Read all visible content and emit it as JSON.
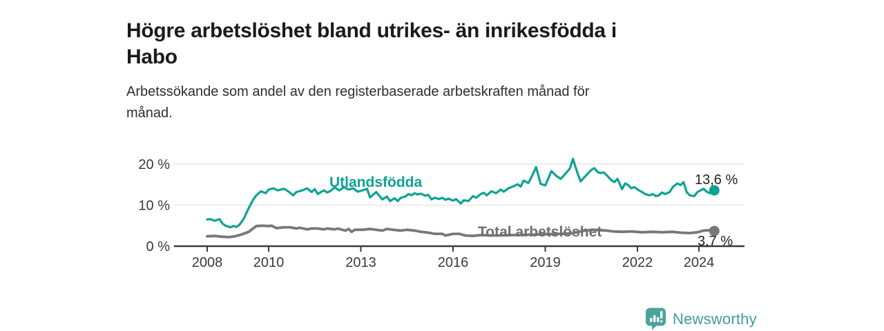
{
  "header": {
    "title": "Högre arbetslöshet bland utrikes- än inrikesfödda i Habo",
    "title_lines": [
      "Högre arbetslöshet bland utrikes- än inrikesfödda i",
      "Habo"
    ],
    "subtitle": "Arbetssökande som andel av den registerbaserade arbetskraften månad för månad.",
    "subtitle_lines": [
      "Arbetssökande som andel av den registerbaserade arbetskraften månad för",
      "månad."
    ]
  },
  "footer": {
    "logo_text": "Newsworthy",
    "logo_color": "#3f9e97",
    "logo_icon": "bar-chart-speech-bubble-icon"
  },
  "chart_data": {
    "type": "line",
    "title": "Högre arbetslöshet bland utrikes- än inrikesfödda i Habo",
    "subtitle": "Arbetssökande som andel av den registerbaserade arbetskraften månad för månad.",
    "xlabel": "",
    "ylabel": "",
    "unit": "%",
    "x_range": [
      2006.9,
      2025.5
    ],
    "ylim": [
      0,
      22.5
    ],
    "grid": "horizontal",
    "legend_position": "inline-labels",
    "x_axis": {
      "ticks": [
        2008,
        2010,
        2013,
        2016,
        2019,
        2022,
        2024
      ]
    },
    "y_axis": {
      "ticks": [
        {
          "value": 0,
          "label": "0 %"
        },
        {
          "value": 10,
          "label": "10 %"
        },
        {
          "value": 20,
          "label": "20 %"
        }
      ]
    },
    "style": {
      "grid_color": "#e1e1e1",
      "axis_color": "#3a3a3a",
      "axis_text_color": "#3a3a3a"
    },
    "series": [
      {
        "id": "utlandsfodda",
        "name": "Utlandsfödda",
        "color": "#0ea294",
        "width": 3.2,
        "end_label": "13,6 %",
        "end_value": 13.6,
        "points": [
          [
            2008,
            6.5
          ],
          [
            2008.1,
            6.6
          ],
          [
            2008.25,
            6.2
          ],
          [
            2008.4,
            6.6
          ],
          [
            2008.5,
            5.5
          ],
          [
            2008.6,
            5
          ],
          [
            2008.75,
            4.6
          ],
          [
            2008.85,
            4.9
          ],
          [
            2008.95,
            4.7
          ],
          [
            2009.05,
            5.2
          ],
          [
            2009.2,
            6.8
          ],
          [
            2009.35,
            9.3
          ],
          [
            2009.5,
            11.4
          ],
          [
            2009.6,
            12.4
          ],
          [
            2009.75,
            13.4
          ],
          [
            2009.9,
            12.9
          ],
          [
            2010,
            13.8
          ],
          [
            2010.15,
            14.1
          ],
          [
            2010.3,
            13.6
          ],
          [
            2010.5,
            14
          ],
          [
            2010.65,
            13.3
          ],
          [
            2010.8,
            12.4
          ],
          [
            2010.9,
            13.2
          ],
          [
            2011.1,
            13.6
          ],
          [
            2011.25,
            14.1
          ],
          [
            2011.4,
            13.2
          ],
          [
            2011.5,
            13.9
          ],
          [
            2011.6,
            12.7
          ],
          [
            2011.7,
            13.2
          ],
          [
            2011.8,
            13.6
          ],
          [
            2011.9,
            13.1
          ],
          [
            2012,
            13.4
          ],
          [
            2012.15,
            14.3
          ],
          [
            2012.3,
            13.6
          ],
          [
            2012.45,
            14.4
          ],
          [
            2012.6,
            13.8
          ],
          [
            2012.75,
            14.1
          ],
          [
            2012.9,
            13.3
          ],
          [
            2013.05,
            13.6
          ],
          [
            2013.2,
            14
          ],
          [
            2013.3,
            11.9
          ],
          [
            2013.5,
            13.2
          ],
          [
            2013.7,
            11.4
          ],
          [
            2013.85,
            12.1
          ],
          [
            2013.95,
            11
          ],
          [
            2014.1,
            11.7
          ],
          [
            2014.2,
            11
          ],
          [
            2014.3,
            11.8
          ],
          [
            2014.45,
            12.1
          ],
          [
            2014.55,
            12.7
          ],
          [
            2014.65,
            12.4
          ],
          [
            2014.75,
            12.9
          ],
          [
            2014.85,
            12.6
          ],
          [
            2014.95,
            12.8
          ],
          [
            2015.1,
            12.3
          ],
          [
            2015.2,
            12.5
          ],
          [
            2015.3,
            11.4
          ],
          [
            2015.4,
            11.8
          ],
          [
            2015.55,
            11.5
          ],
          [
            2015.65,
            11.8
          ],
          [
            2015.75,
            11.3
          ],
          [
            2015.85,
            11.6
          ],
          [
            2016,
            11.1
          ],
          [
            2016.1,
            11.5
          ],
          [
            2016.25,
            10.4
          ],
          [
            2016.35,
            11.2
          ],
          [
            2016.5,
            11
          ],
          [
            2016.65,
            12.2
          ],
          [
            2016.75,
            11.8
          ],
          [
            2016.9,
            12.7
          ],
          [
            2017,
            13
          ],
          [
            2017.1,
            12.4
          ],
          [
            2017.25,
            13.4
          ],
          [
            2017.4,
            12.9
          ],
          [
            2017.55,
            13.8
          ],
          [
            2017.65,
            13.3
          ],
          [
            2017.8,
            14.1
          ],
          [
            2018,
            14.7
          ],
          [
            2018.1,
            15.1
          ],
          [
            2018.2,
            14.5
          ],
          [
            2018.3,
            16
          ],
          [
            2018.45,
            15.4
          ],
          [
            2018.55,
            16.8
          ],
          [
            2018.7,
            19.3
          ],
          [
            2018.85,
            15.2
          ],
          [
            2019,
            14.8
          ],
          [
            2019.1,
            16.5
          ],
          [
            2019.2,
            18.3
          ],
          [
            2019.35,
            17.2
          ],
          [
            2019.5,
            16.4
          ],
          [
            2019.65,
            17.6
          ],
          [
            2019.8,
            18.9
          ],
          [
            2019.9,
            21.3
          ],
          [
            2020.05,
            17.8
          ],
          [
            2020.15,
            15.8
          ],
          [
            2020.3,
            17
          ],
          [
            2020.5,
            18.6
          ],
          [
            2020.6,
            19
          ],
          [
            2020.7,
            18.1
          ],
          [
            2020.8,
            17.8
          ],
          [
            2020.9,
            18
          ],
          [
            2021,
            17.3
          ],
          [
            2021.15,
            16.1
          ],
          [
            2021.25,
            15.6
          ],
          [
            2021.35,
            16.4
          ],
          [
            2021.5,
            13.9
          ],
          [
            2021.6,
            15.3
          ],
          [
            2021.7,
            14.9
          ],
          [
            2021.8,
            14.1
          ],
          [
            2021.9,
            14.4
          ],
          [
            2022.05,
            13.6
          ],
          [
            2022.15,
            13.2
          ],
          [
            2022.25,
            12.7
          ],
          [
            2022.4,
            12.4
          ],
          [
            2022.5,
            12.7
          ],
          [
            2022.6,
            12.2
          ],
          [
            2022.7,
            12.4
          ],
          [
            2022.8,
            13.1
          ],
          [
            2022.9,
            12.7
          ],
          [
            2023.05,
            13.2
          ],
          [
            2023.15,
            14.4
          ],
          [
            2023.3,
            15.3
          ],
          [
            2023.4,
            14.9
          ],
          [
            2023.5,
            15.6
          ],
          [
            2023.6,
            13.2
          ],
          [
            2023.7,
            12.4
          ],
          [
            2023.85,
            12.2
          ],
          [
            2023.95,
            13.2
          ],
          [
            2024.05,
            13.6
          ],
          [
            2024.15,
            14
          ],
          [
            2024.25,
            13.3
          ],
          [
            2024.35,
            12.9
          ],
          [
            2024.5,
            13.6
          ]
        ]
      },
      {
        "id": "total",
        "name": "Total arbetslöshet",
        "color": "#77777c",
        "width": 3.8,
        "end_label": "3,7 %",
        "end_value": 3.7,
        "points": [
          [
            2008,
            2.4
          ],
          [
            2008.25,
            2.5
          ],
          [
            2008.5,
            2.3
          ],
          [
            2008.7,
            2.2
          ],
          [
            2008.9,
            2.4
          ],
          [
            2009.1,
            2.8
          ],
          [
            2009.35,
            3.5
          ],
          [
            2009.6,
            4.9
          ],
          [
            2009.8,
            5
          ],
          [
            2010,
            4.9
          ],
          [
            2010.1,
            5
          ],
          [
            2010.25,
            4.4
          ],
          [
            2010.5,
            4.6
          ],
          [
            2010.7,
            4.6
          ],
          [
            2010.9,
            4.3
          ],
          [
            2011,
            4.5
          ],
          [
            2011.25,
            4.1
          ],
          [
            2011.4,
            4.3
          ],
          [
            2011.6,
            4.3
          ],
          [
            2011.8,
            4.1
          ],
          [
            2011.9,
            4.3
          ],
          [
            2012.15,
            4.1
          ],
          [
            2012.25,
            4.3
          ],
          [
            2012.5,
            3.8
          ],
          [
            2012.6,
            4.2
          ],
          [
            2012.7,
            3.5
          ],
          [
            2012.8,
            4
          ],
          [
            2013.05,
            4
          ],
          [
            2013.3,
            4.2
          ],
          [
            2013.5,
            4
          ],
          [
            2013.7,
            3.8
          ],
          [
            2013.85,
            4.2
          ],
          [
            2014.05,
            4
          ],
          [
            2014.3,
            3.8
          ],
          [
            2014.5,
            4
          ],
          [
            2014.75,
            3.8
          ],
          [
            2014.95,
            3.5
          ],
          [
            2015.2,
            3.3
          ],
          [
            2015.4,
            3
          ],
          [
            2015.65,
            3
          ],
          [
            2015.75,
            2.6
          ],
          [
            2016,
            3
          ],
          [
            2016.2,
            3
          ],
          [
            2016.4,
            2.6
          ],
          [
            2016.65,
            2.5
          ],
          [
            2016.9,
            2.7
          ],
          [
            2017.2,
            2.6
          ],
          [
            2017.5,
            2.6
          ],
          [
            2017.8,
            2.7
          ],
          [
            2018.1,
            2.7
          ],
          [
            2018.4,
            2.8
          ],
          [
            2018.7,
            2.8
          ],
          [
            2019,
            2.9
          ],
          [
            2019.3,
            3
          ],
          [
            2019.6,
            3
          ],
          [
            2019.9,
            3.2
          ],
          [
            2020.2,
            3.7
          ],
          [
            2020.5,
            4
          ],
          [
            2020.8,
            3.9
          ],
          [
            2021,
            3.8
          ],
          [
            2021.2,
            3.6
          ],
          [
            2021.5,
            3.5
          ],
          [
            2021.8,
            3.6
          ],
          [
            2022.15,
            3.4
          ],
          [
            2022.5,
            3.5
          ],
          [
            2022.8,
            3.4
          ],
          [
            2023.15,
            3.5
          ],
          [
            2023.4,
            3.3
          ],
          [
            2023.7,
            3.2
          ],
          [
            2023.95,
            3.4
          ],
          [
            2024.15,
            3.8
          ],
          [
            2024.35,
            3.9
          ],
          [
            2024.5,
            3.7
          ]
        ]
      }
    ]
  }
}
